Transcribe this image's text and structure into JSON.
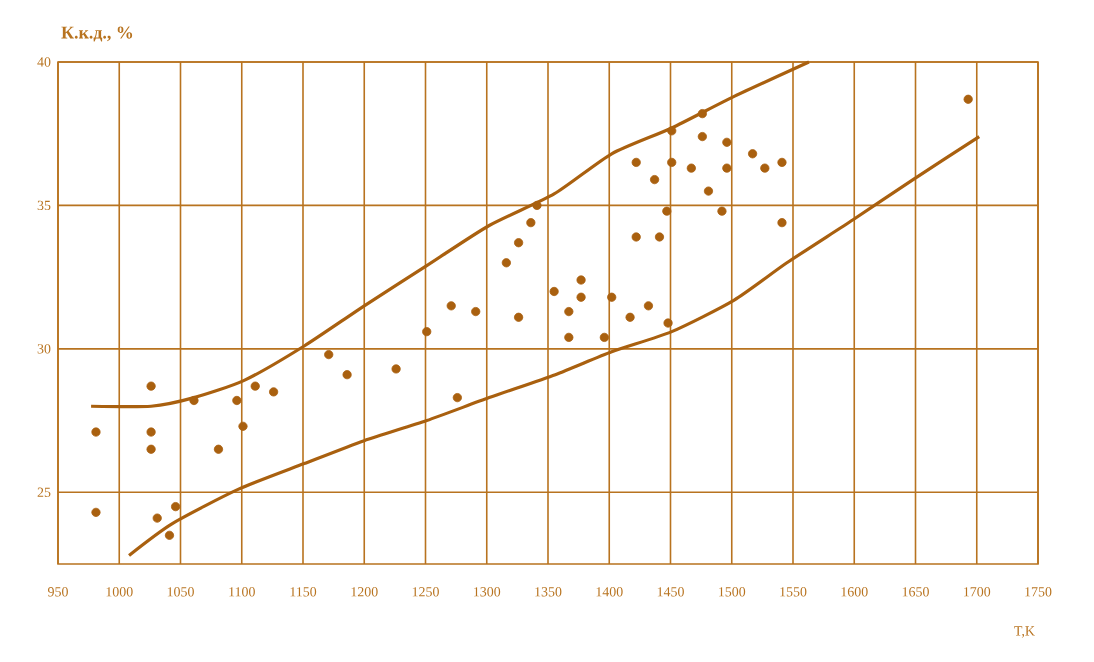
{
  "chart_data": {
    "type": "scatter",
    "xlabel": "T,K",
    "ylabel": "К.к.д., %",
    "xlim": [
      950,
      1750
    ],
    "ylim": [
      22.5,
      40
    ],
    "xticks": [
      950,
      1000,
      1050,
      1100,
      1150,
      1200,
      1250,
      1300,
      1350,
      1400,
      1450,
      1500,
      1550,
      1600,
      1650,
      1700,
      1750
    ],
    "yticks": [
      25,
      30,
      35,
      40
    ],
    "grid": true,
    "marker": "circle",
    "series": [
      {
        "type": "scatter",
        "color": "#a9600f",
        "x": [
          981,
          981,
          1026,
          1026,
          1026,
          1031,
          1041,
          1046,
          1061,
          1081,
          1096,
          1101,
          1111,
          1126,
          1171,
          1186,
          1226,
          1251,
          1271,
          1276,
          1291,
          1316,
          1326,
          1326,
          1336,
          1341,
          1355,
          1367,
          1367,
          1377,
          1377,
          1396,
          1402,
          1417,
          1422,
          1422,
          1432,
          1437,
          1441,
          1447,
          1448,
          1451,
          1451,
          1467,
          1476,
          1476,
          1481,
          1492,
          1496,
          1496,
          1517,
          1527,
          1541,
          1541,
          1693
        ],
        "values": [
          27.1,
          24.3,
          28.7,
          27.1,
          26.5,
          24.1,
          23.5,
          24.5,
          28.2,
          26.5,
          28.2,
          27.3,
          28.7,
          28.5,
          29.8,
          29.1,
          29.3,
          30.6,
          31.5,
          28.3,
          31.3,
          33.0,
          33.7,
          31.1,
          34.4,
          35.0,
          32.0,
          31.3,
          30.4,
          32.4,
          31.8,
          30.4,
          31.8,
          31.1,
          36.5,
          33.9,
          31.5,
          35.9,
          33.9,
          34.8,
          30.9,
          37.6,
          36.5,
          36.3,
          38.2,
          37.4,
          35.5,
          34.8,
          37.2,
          36.3,
          36.8,
          36.3,
          36.5,
          34.4,
          38.7
        ]
      },
      {
        "type": "line",
        "marker": "none",
        "color": "#a9600f",
        "x": [
          977,
          1026,
          1061,
          1102,
          1151,
          1200,
          1251,
          1302,
          1355,
          1402,
          1451,
          1502,
          1563
        ],
        "values": [
          28.0,
          28.0,
          28.3,
          28.9,
          30.1,
          31.5,
          32.9,
          34.3,
          35.4,
          36.8,
          37.7,
          38.8,
          40.0
        ]
      },
      {
        "type": "line",
        "marker": "none",
        "color": "#a9600f",
        "x": [
          1008,
          1043,
          1097,
          1151,
          1200,
          1251,
          1302,
          1356,
          1402,
          1451,
          1502,
          1545,
          1599,
          1648,
          1702
        ],
        "values": [
          22.8,
          23.9,
          25.1,
          26.0,
          26.8,
          27.5,
          28.3,
          29.1,
          29.9,
          30.6,
          31.7,
          33.0,
          34.5,
          35.9,
          37.4
        ]
      }
    ]
  }
}
